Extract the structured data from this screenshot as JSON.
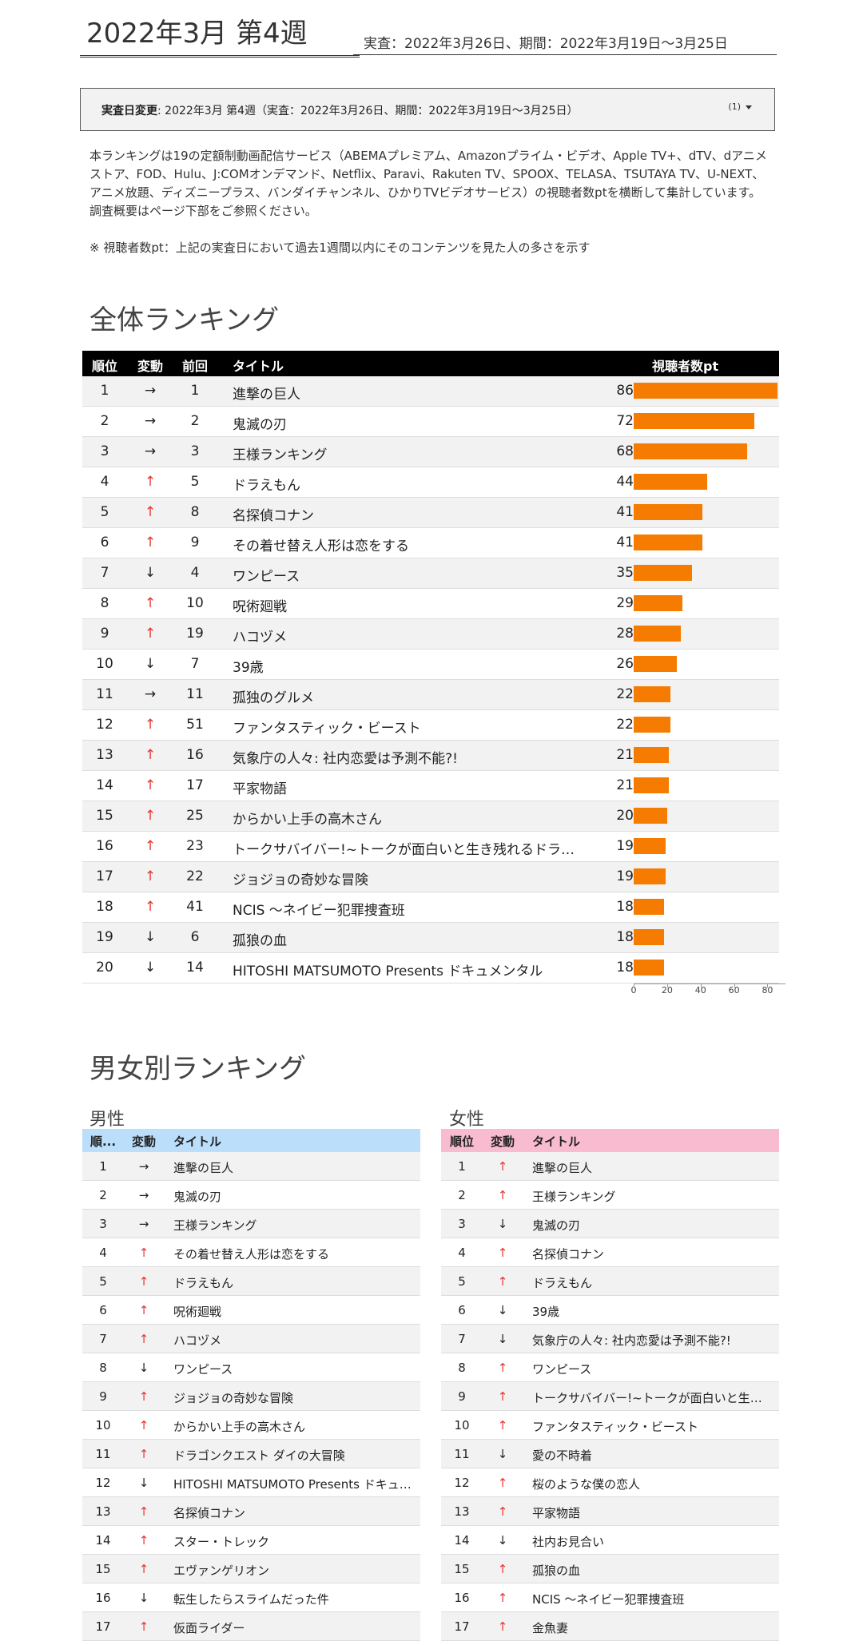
{
  "header": {
    "week_title": "2022年3月 第4週",
    "period": "実査：2022年3月26日、期間：2022年3月19日〜3月25日"
  },
  "date_selector": {
    "label": "実査日変更",
    "value": ": 2022年3月 第4週（実査：2022年3月26日、期間：2022年3月19日〜3月25日）",
    "badge": "(1)"
  },
  "description": "本ランキングは19の定額制動画配信サービス（ABEMAプレミアム、Amazonプライム・ビデオ、Apple TV+、dTV、dアニメストア、FOD、Hulu、J:COMオンデマンド、Netflix、Paravi、Rakuten TV、SPOOX、TELASA、TSUTAYA TV、U-NEXT、アニメ放題、ディズニープラス、バンダイチャンネル、ひかりTVビデオサービス）の視聴者数ptを横断して集計しています。調査概要はページ下部をご参照ください。",
  "note": "※ 視聴者数pt：上記の実査日において過去1週間以内にそのコンテンツを見た人の多さを示す",
  "colors": {
    "bar": "#f57c00",
    "up": "#e53935",
    "male_header": "#bbdefb",
    "female_header": "#f8bbd0"
  },
  "overall": {
    "title": "全体ランキング",
    "headers": {
      "rank": "順位",
      "change": "変動",
      "prev": "前回",
      "title": "タイトル",
      "points": "視聴者数pt"
    },
    "rows": [
      {
        "rank": "1",
        "change": "→",
        "dir": "flat",
        "prev": "1",
        "title": "進撃の巨人",
        "points": 86
      },
      {
        "rank": "2",
        "change": "→",
        "dir": "flat",
        "prev": "2",
        "title": "鬼滅の刃",
        "points": 72
      },
      {
        "rank": "3",
        "change": "→",
        "dir": "flat",
        "prev": "3",
        "title": "王様ランキング",
        "points": 68
      },
      {
        "rank": "4",
        "change": "↑",
        "dir": "up",
        "prev": "5",
        "title": "ドラえもん",
        "points": 44
      },
      {
        "rank": "5",
        "change": "↑",
        "dir": "up",
        "prev": "8",
        "title": "名探偵コナン",
        "points": 41
      },
      {
        "rank": "6",
        "change": "↑",
        "dir": "up",
        "prev": "9",
        "title": "その着せ替え人形は恋をする",
        "points": 41
      },
      {
        "rank": "7",
        "change": "↓",
        "dir": "down",
        "prev": "4",
        "title": "ワンピース",
        "points": 35
      },
      {
        "rank": "8",
        "change": "↑",
        "dir": "up",
        "prev": "10",
        "title": "呪術廻戦",
        "points": 29
      },
      {
        "rank": "9",
        "change": "↑",
        "dir": "up",
        "prev": "19",
        "title": "ハコヅメ",
        "points": 28
      },
      {
        "rank": "10",
        "change": "↓",
        "dir": "down",
        "prev": "7",
        "title": "39歳",
        "points": 26
      },
      {
        "rank": "11",
        "change": "→",
        "dir": "flat",
        "prev": "11",
        "title": "孤独のグルメ",
        "points": 22
      },
      {
        "rank": "12",
        "change": "↑",
        "dir": "up",
        "prev": "51",
        "title": "ファンタスティック・ビースト",
        "points": 22
      },
      {
        "rank": "13",
        "change": "↑",
        "dir": "up",
        "prev": "16",
        "title": "気象庁の人々: 社内恋愛は予測不能?!",
        "points": 21
      },
      {
        "rank": "14",
        "change": "↑",
        "dir": "up",
        "prev": "17",
        "title": "平家物語",
        "points": 21
      },
      {
        "rank": "15",
        "change": "↑",
        "dir": "up",
        "prev": "25",
        "title": "からかい上手の高木さん",
        "points": 20
      },
      {
        "rank": "16",
        "change": "↑",
        "dir": "up",
        "prev": "23",
        "title": "トークサバイバー!~トークが面白いと生き残れるドラマ~",
        "points": 19
      },
      {
        "rank": "17",
        "change": "↑",
        "dir": "up",
        "prev": "22",
        "title": "ジョジョの奇妙な冒険",
        "points": 19
      },
      {
        "rank": "18",
        "change": "↑",
        "dir": "up",
        "prev": "41",
        "title": "NCIS 〜ネイビー犯罪捜査班",
        "points": 18
      },
      {
        "rank": "19",
        "change": "↓",
        "dir": "down",
        "prev": "6",
        "title": "孤狼の血",
        "points": 18
      },
      {
        "rank": "20",
        "change": "↓",
        "dir": "down",
        "prev": "14",
        "title": "HITOSHI MATSUMOTO Presents ドキュメンタル",
        "points": 18
      }
    ],
    "axis_ticks": [
      "0",
      "20",
      "40",
      "60",
      "80"
    ],
    "axis_max": 86
  },
  "gender": {
    "title": "男女別ランキング",
    "male": {
      "label": "男性",
      "headers": {
        "rank": "順...",
        "change": "変動",
        "title": "タイトル"
      },
      "rows": [
        {
          "rank": "1",
          "change": "→",
          "dir": "flat",
          "title": "進撃の巨人"
        },
        {
          "rank": "2",
          "change": "→",
          "dir": "flat",
          "title": "鬼滅の刃"
        },
        {
          "rank": "3",
          "change": "→",
          "dir": "flat",
          "title": "王様ランキング"
        },
        {
          "rank": "4",
          "change": "↑",
          "dir": "up",
          "title": "その着せ替え人形は恋をする"
        },
        {
          "rank": "5",
          "change": "↑",
          "dir": "up",
          "title": "ドラえもん"
        },
        {
          "rank": "6",
          "change": "↑",
          "dir": "up",
          "title": "呪術廻戦"
        },
        {
          "rank": "7",
          "change": "↑",
          "dir": "up",
          "title": "ハコヅメ"
        },
        {
          "rank": "8",
          "change": "↓",
          "dir": "down",
          "title": "ワンピース"
        },
        {
          "rank": "9",
          "change": "↑",
          "dir": "up",
          "title": "ジョジョの奇妙な冒険"
        },
        {
          "rank": "10",
          "change": "↑",
          "dir": "up",
          "title": "からかい上手の高木さん"
        },
        {
          "rank": "11",
          "change": "↑",
          "dir": "up",
          "title": "ドラゴンクエスト ダイの大冒険"
        },
        {
          "rank": "12",
          "change": "↓",
          "dir": "down",
          "title": "HITOSHI MATSUMOTO Presents ドキュメンタル"
        },
        {
          "rank": "13",
          "change": "↑",
          "dir": "up",
          "title": "名探偵コナン"
        },
        {
          "rank": "14",
          "change": "↑",
          "dir": "up",
          "title": "スター・トレック"
        },
        {
          "rank": "15",
          "change": "↑",
          "dir": "up",
          "title": "エヴァンゲリオン"
        },
        {
          "rank": "16",
          "change": "↓",
          "dir": "down",
          "title": "転生したらスライムだった件"
        },
        {
          "rank": "17",
          "change": "↑",
          "dir": "up",
          "title": "仮面ライダー"
        }
      ]
    },
    "female": {
      "label": "女性",
      "headers": {
        "rank": "順位",
        "change": "変動",
        "title": "タイトル"
      },
      "rows": [
        {
          "rank": "1",
          "change": "↑",
          "dir": "up",
          "title": "進撃の巨人"
        },
        {
          "rank": "2",
          "change": "↑",
          "dir": "up",
          "title": "王様ランキング"
        },
        {
          "rank": "3",
          "change": "↓",
          "dir": "down",
          "title": "鬼滅の刃"
        },
        {
          "rank": "4",
          "change": "↑",
          "dir": "up",
          "title": "名探偵コナン"
        },
        {
          "rank": "5",
          "change": "↑",
          "dir": "up",
          "title": "ドラえもん"
        },
        {
          "rank": "6",
          "change": "↓",
          "dir": "down",
          "title": "39歳"
        },
        {
          "rank": "7",
          "change": "↓",
          "dir": "down",
          "title": "気象庁の人々: 社内恋愛は予測不能?!"
        },
        {
          "rank": "8",
          "change": "↑",
          "dir": "up",
          "title": "ワンピース"
        },
        {
          "rank": "9",
          "change": "↑",
          "dir": "up",
          "title": "トークサバイバー!~トークが面白いと生き残れるドラマ~"
        },
        {
          "rank": "10",
          "change": "↑",
          "dir": "up",
          "title": "ファンタスティック・ビースト"
        },
        {
          "rank": "11",
          "change": "↓",
          "dir": "down",
          "title": "愛の不時着"
        },
        {
          "rank": "12",
          "change": "↑",
          "dir": "up",
          "title": "桜のような僕の恋人"
        },
        {
          "rank": "13",
          "change": "↑",
          "dir": "up",
          "title": "平家物語"
        },
        {
          "rank": "14",
          "change": "↓",
          "dir": "down",
          "title": "社内お見合い"
        },
        {
          "rank": "15",
          "change": "↑",
          "dir": "up",
          "title": "孤狼の血"
        },
        {
          "rank": "16",
          "change": "↑",
          "dir": "up",
          "title": "NCIS 〜ネイビー犯罪捜査班"
        },
        {
          "rank": "17",
          "change": "↑",
          "dir": "up",
          "title": "金魚妻"
        }
      ]
    }
  }
}
